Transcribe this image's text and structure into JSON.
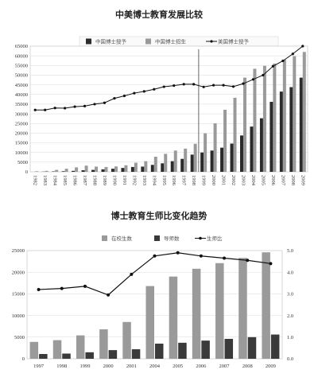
{
  "chart_data": [
    {
      "type": "bar",
      "title": "中美博士教育发展比较",
      "categories": [
        "1982",
        "1983",
        "1984",
        "1985",
        "1986",
        "1987",
        "1988",
        "1989",
        "1990",
        "1991",
        "1992",
        "1993",
        "1994",
        "1995",
        "1996",
        "1997",
        "1998",
        "1999",
        "2000",
        "2001",
        "2002",
        "2003",
        "2004",
        "2005",
        "2006",
        "2007",
        "2008",
        "2009"
      ],
      "ylim": [
        0,
        65000
      ],
      "yticks": [
        0,
        5000,
        10000,
        15000,
        20000,
        25000,
        30000,
        35000,
        40000,
        45000,
        50000,
        55000,
        60000,
        65000
      ],
      "series": [
        {
          "name": "中国博士授予",
          "kind": "bar",
          "color": "#2b2b2b",
          "values": [
            13,
            100,
            200,
            300,
            500,
            800,
            1000,
            1300,
            1600,
            2000,
            2500,
            2700,
            3600,
            4400,
            5500,
            6700,
            8900,
            10000,
            11000,
            12500,
            14600,
            18800,
            23400,
            27700,
            36200,
            41500,
            43800,
            48700
          ]
        },
        {
          "name": "中国博士招生",
          "kind": "bar",
          "color": "#9a9a9a",
          "values": [
            300,
            500,
            1000,
            1600,
            2300,
            3200,
            2700,
            2500,
            2800,
            3400,
            4700,
            5500,
            7800,
            9300,
            11000,
            12000,
            14500,
            19900,
            25100,
            32100,
            38300,
            48700,
            53300,
            54800,
            56000,
            58000,
            59800,
            62000
          ]
        },
        {
          "name": "美国博士授予",
          "kind": "line",
          "color": "#111111",
          "values": [
            32000,
            32000,
            33000,
            32900,
            33700,
            34000,
            35000,
            35700,
            38000,
            39300,
            40700,
            41600,
            42700,
            44000,
            44600,
            45300,
            45300,
            43900,
            44800,
            44800,
            44100,
            45600,
            47800,
            50000,
            54600,
            57400,
            61000,
            65000
          ]
        }
      ],
      "marker_after_category": "1998"
    },
    {
      "type": "bar",
      "title": "博士教育生师比变化趋势",
      "categories": [
        "1997",
        "1998",
        "1999",
        "2000",
        "2001",
        "2004",
        "2005",
        "2006",
        "2007",
        "2008",
        "2009"
      ],
      "ylim": [
        0,
        25000
      ],
      "yticks": [
        0,
        5000,
        10000,
        15000,
        20000,
        25000
      ],
      "y2lim": [
        0,
        5.0
      ],
      "y2ticks": [
        "0.0",
        "1.0",
        "2.0",
        "3.0",
        "4.0",
        "5.0"
      ],
      "series": [
        {
          "name": "在校生数",
          "kind": "bar",
          "color": "#9a9a9a",
          "values": [
            3900,
            4300,
            5400,
            6800,
            8500,
            16800,
            19000,
            20800,
            22100,
            23300,
            24600
          ]
        },
        {
          "name": "导师数",
          "kind": "bar",
          "color": "#3a3a3a",
          "values": [
            1100,
            1200,
            1500,
            2000,
            2200,
            3500,
            3700,
            4200,
            4600,
            5000,
            5600
          ]
        },
        {
          "name": "生师比",
          "kind": "line",
          "axis": "right",
          "color": "#111111",
          "values": [
            3.2,
            3.25,
            3.35,
            2.95,
            3.9,
            4.75,
            4.9,
            4.75,
            4.65,
            4.55,
            4.4
          ]
        }
      ]
    }
  ]
}
